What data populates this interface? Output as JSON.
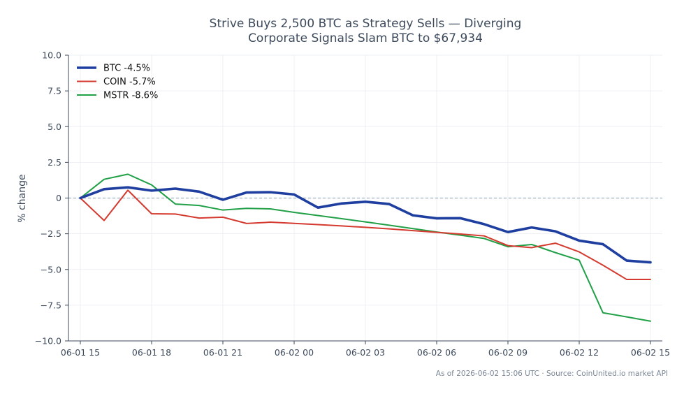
{
  "chart_data": {
    "type": "line",
    "title_lines": [
      "Strive Buys 2,500 BTC as Strategy Sells — Diverging",
      "Corporate Signals Slam BTC to $67,934"
    ],
    "ylabel": "% change",
    "xlabel": "",
    "ylim": [
      -10,
      10
    ],
    "yticks": [
      10.0,
      7.5,
      5.0,
      2.5,
      0.0,
      -2.5,
      -5.0,
      -7.5,
      -10.0
    ],
    "ytick_labels": [
      "10.0",
      "7.5",
      "5.0",
      "2.5",
      "0",
      "−2.5",
      "−5.0",
      "−7.5",
      "−10.0"
    ],
    "x_hours_range": [
      -0.5,
      24.5
    ],
    "xticks": [
      0,
      3,
      6,
      9,
      12,
      15,
      18,
      21,
      24
    ],
    "xtick_labels": [
      "06-01 15",
      "06-01 18",
      "06-01 21",
      "06-02 00",
      "06-02 03",
      "06-02 06",
      "06-02 09",
      "06-02 12",
      "06-02 15"
    ],
    "x": [
      0,
      1,
      2,
      3,
      4,
      5,
      6,
      7,
      8,
      9,
      10,
      11,
      12,
      13,
      14,
      15,
      16,
      17,
      18,
      19,
      20,
      21,
      22,
      23,
      24
    ],
    "reference_line": 0,
    "grid": true,
    "legend_position": "top-left",
    "series": [
      {
        "name": "BTC -4.5%",
        "color": "#1f3fa0",
        "values": [
          0,
          0.62,
          0.75,
          0.52,
          0.66,
          0.45,
          -0.12,
          0.39,
          0.41,
          0.25,
          -0.67,
          -0.38,
          -0.26,
          -0.42,
          -1.21,
          -1.42,
          -1.41,
          -1.83,
          -2.38,
          -2.06,
          -2.33,
          -2.98,
          -3.23,
          -4.38,
          -4.5
        ]
      },
      {
        "name": "COIN -5.7%",
        "color": "#d43a2f",
        "values": [
          0,
          -1.57,
          0.55,
          -1.1,
          -1.12,
          -1.4,
          -1.34,
          -1.78,
          -1.69,
          -1.77,
          -1.86,
          -1.95,
          -2.05,
          -2.16,
          -2.28,
          -2.4,
          -2.52,
          -2.65,
          -3.33,
          -3.47,
          -3.16,
          -3.77,
          -4.7,
          -5.7,
          -5.7
        ]
      },
      {
        "name": "MSTR -8.6%",
        "color": "#22a048",
        "values": [
          0,
          1.31,
          1.67,
          0.92,
          -0.42,
          -0.52,
          -0.84,
          -0.72,
          -0.76,
          -1.0,
          -1.22,
          -1.44,
          -1.67,
          -1.9,
          -2.14,
          -2.38,
          -2.6,
          -2.83,
          -3.41,
          -3.25,
          -3.82,
          -4.35,
          -8.03,
          -8.32,
          -8.62
        ]
      }
    ],
    "footnote": "As of 2026-06-02 15:06 UTC · Source: CoinUnited.io market API"
  }
}
